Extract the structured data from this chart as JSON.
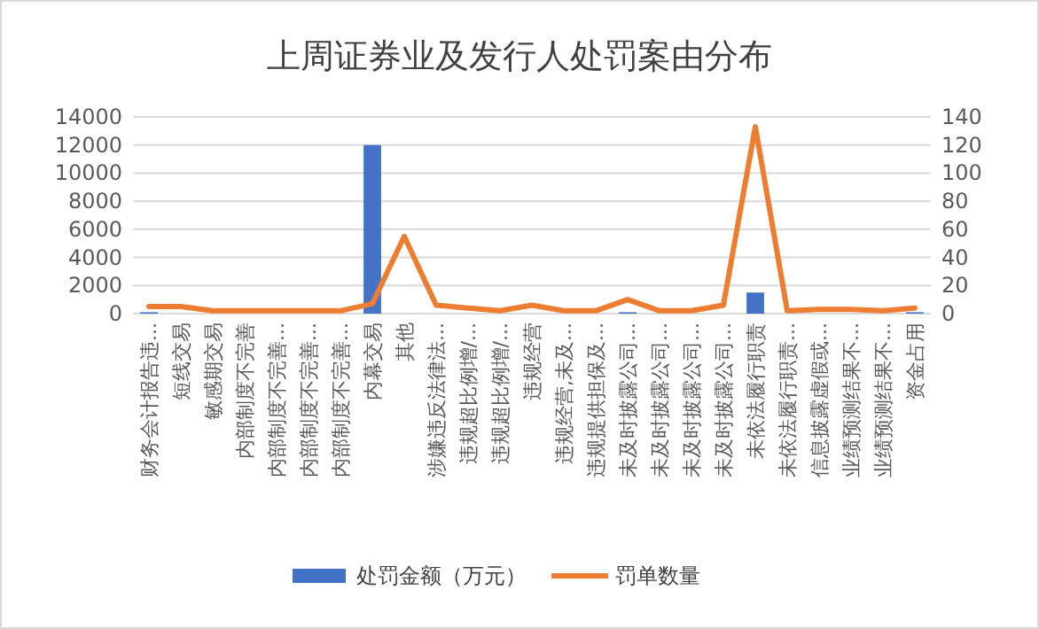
{
  "chart_data": {
    "type": "bar",
    "title": "上周证券业及发行人处罚案由分布",
    "categories": [
      "财务会计报告违...",
      "短线交易",
      "敏感期交易",
      "内部制度不完善",
      "内部制度不完善...",
      "内部制度不完善...",
      "内部制度不完善...",
      "内幕交易",
      "其他",
      "涉嫌违反法律法...",
      "违规超比例增/...",
      "违规超比例增/...",
      "违规经营",
      "违规经营,未及...",
      "违规提供担保及...",
      "未及时披露公司...",
      "未及时披露公司...",
      "未及时披露公司...",
      "未及时披露公司...",
      "未依法履行职责",
      "未依法履行职责...",
      "信息披露虚假或...",
      "业绩预测结果不...",
      "业绩预测结果不...",
      "资金占用"
    ],
    "series": [
      {
        "name": "处罚金额（万元）",
        "color": "#4472c4",
        "values": [
          100,
          0,
          0,
          0,
          0,
          0,
          0,
          12000,
          0,
          0,
          0,
          0,
          0,
          0,
          0,
          100,
          0,
          0,
          0,
          1500,
          0,
          0,
          0,
          0,
          100
        ]
      },
      {
        "name": "罚单数量",
        "type": "line",
        "axis": "y2",
        "color": "#ed7d31",
        "values": [
          5,
          5,
          2,
          2,
          2,
          2,
          2,
          7,
          55,
          6,
          4,
          2,
          6,
          2,
          2,
          10,
          2,
          2,
          6,
          133,
          2,
          3,
          3,
          2,
          4
        ]
      }
    ],
    "ylim": [
      0,
      14000
    ],
    "yticks": [
      0,
      2000,
      4000,
      6000,
      8000,
      10000,
      12000,
      14000
    ],
    "y2lim": [
      0,
      140
    ],
    "y2ticks": [
      0,
      20,
      40,
      60,
      80,
      100,
      120,
      140
    ],
    "grid": "y",
    "legend": "bottom",
    "marker": "none",
    "line_style": "solid"
  }
}
